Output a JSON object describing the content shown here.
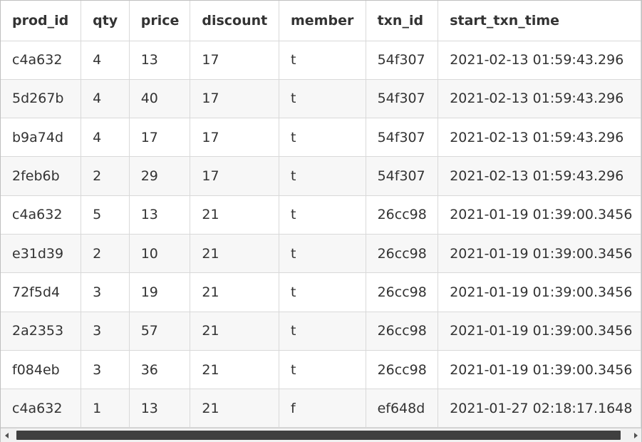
{
  "table": {
    "columns": [
      "prod_id",
      "qty",
      "price",
      "discount",
      "member",
      "txn_id",
      "start_txn_time"
    ],
    "rows": [
      [
        "c4a632",
        "4",
        "13",
        "17",
        "t",
        "54f307",
        "2021-02-13 01:59:43.296"
      ],
      [
        "5d267b",
        "4",
        "40",
        "17",
        "t",
        "54f307",
        "2021-02-13 01:59:43.296"
      ],
      [
        "b9a74d",
        "4",
        "17",
        "17",
        "t",
        "54f307",
        "2021-02-13 01:59:43.296"
      ],
      [
        "2feb6b",
        "2",
        "29",
        "17",
        "t",
        "54f307",
        "2021-02-13 01:59:43.296"
      ],
      [
        "c4a632",
        "5",
        "13",
        "21",
        "t",
        "26cc98",
        "2021-01-19 01:39:00.3456"
      ],
      [
        "e31d39",
        "2",
        "10",
        "21",
        "t",
        "26cc98",
        "2021-01-19 01:39:00.3456"
      ],
      [
        "72f5d4",
        "3",
        "19",
        "21",
        "t",
        "26cc98",
        "2021-01-19 01:39:00.3456"
      ],
      [
        "2a2353",
        "3",
        "57",
        "21",
        "t",
        "26cc98",
        "2021-01-19 01:39:00.3456"
      ],
      [
        "f084eb",
        "3",
        "36",
        "21",
        "t",
        "26cc98",
        "2021-01-19 01:39:00.3456"
      ],
      [
        "c4a632",
        "1",
        "13",
        "21",
        "f",
        "ef648d",
        "2021-01-27 02:18:17.1648"
      ]
    ]
  },
  "scrollbar": {
    "left_icon": "scroll-left-arrow-icon",
    "right_icon": "scroll-right-arrow-icon",
    "thumb_color": "#3f3f3f",
    "track_color": "#f1f1f1"
  },
  "colors": {
    "header_text": "#333333",
    "cell_text": "#333333",
    "row_alt_bg": "#f7f7f7",
    "grid_line": "#d9d9d9"
  }
}
